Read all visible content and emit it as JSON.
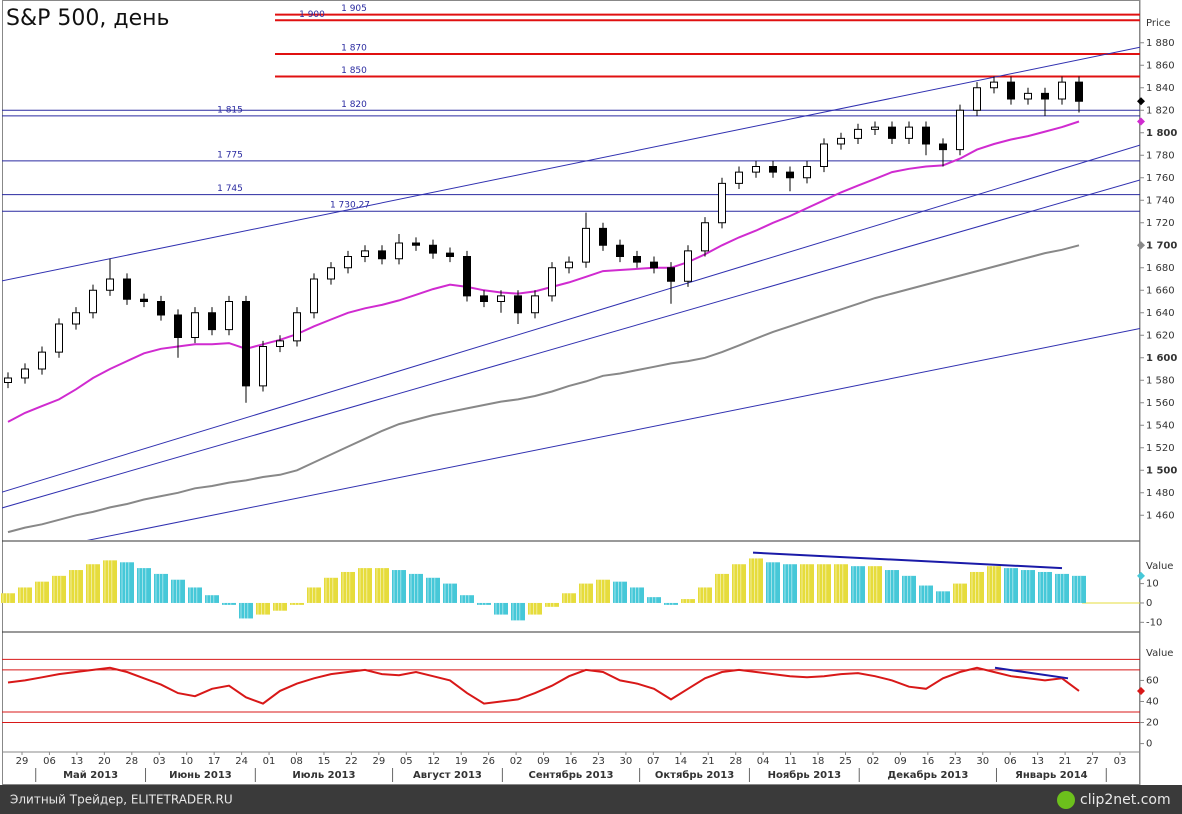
{
  "chart_data": [
    {
      "type": "candlestick",
      "title": "S&P 500, день",
      "y_label": "Price",
      "open": [
        1578,
        1582,
        1590,
        1605,
        1630,
        1640,
        1660,
        1670,
        1652,
        1650,
        1638,
        1618,
        1640,
        1625,
        1650,
        1575,
        1610,
        1615,
        1640,
        1670,
        1680,
        1690,
        1695,
        1688,
        1702,
        1700,
        1693,
        1690,
        1655,
        1650,
        1655,
        1640,
        1655,
        1680,
        1685,
        1715,
        1700,
        1690,
        1685,
        1680,
        1668,
        1695,
        1720,
        1755,
        1765,
        1770,
        1765,
        1760,
        1770,
        1790,
        1795,
        1803,
        1805,
        1795,
        1805,
        1790,
        1785,
        1820,
        1840,
        1845,
        1830,
        1835,
        1830,
        1845
      ],
      "high": [
        1587,
        1595,
        1610,
        1635,
        1645,
        1665,
        1688,
        1675,
        1657,
        1655,
        1643,
        1645,
        1645,
        1655,
        1655,
        1615,
        1620,
        1645,
        1675,
        1685,
        1695,
        1700,
        1700,
        1710,
        1707,
        1705,
        1698,
        1695,
        1660,
        1660,
        1660,
        1660,
        1685,
        1690,
        1729,
        1720,
        1705,
        1695,
        1690,
        1685,
        1700,
        1725,
        1760,
        1770,
        1775,
        1775,
        1770,
        1775,
        1795,
        1800,
        1808,
        1810,
        1810,
        1810,
        1810,
        1795,
        1825,
        1845,
        1850,
        1850,
        1840,
        1840,
        1850,
        1850
      ],
      "low": [
        1573,
        1577,
        1585,
        1600,
        1625,
        1635,
        1655,
        1647,
        1645,
        1633,
        1600,
        1613,
        1620,
        1620,
        1560,
        1570,
        1605,
        1610,
        1635,
        1665,
        1675,
        1685,
        1683,
        1683,
        1695,
        1688,
        1685,
        1650,
        1645,
        1640,
        1630,
        1635,
        1650,
        1675,
        1680,
        1695,
        1685,
        1680,
        1675,
        1648,
        1663,
        1690,
        1715,
        1750,
        1760,
        1760,
        1748,
        1755,
        1765,
        1785,
        1790,
        1798,
        1790,
        1790,
        1780,
        1770,
        1780,
        1815,
        1835,
        1825,
        1825,
        1815,
        1825,
        1818
      ],
      "close": [
        1582,
        1590,
        1605,
        1630,
        1640,
        1660,
        1670,
        1652,
        1650,
        1638,
        1618,
        1640,
        1625,
        1650,
        1575,
        1610,
        1615,
        1640,
        1670,
        1680,
        1690,
        1695,
        1688,
        1702,
        1700,
        1693,
        1690,
        1655,
        1650,
        1655,
        1640,
        1655,
        1680,
        1685,
        1715,
        1700,
        1690,
        1685,
        1680,
        1668,
        1695,
        1720,
        1755,
        1765,
        1770,
        1765,
        1760,
        1770,
        1790,
        1795,
        1803,
        1805,
        1795,
        1805,
        1790,
        1785,
        1820,
        1840,
        1845,
        1830,
        1835,
        1830,
        1845,
        1828
      ],
      "series": [
        {
          "color": "#d02bd0",
          "values": [
            1543,
            1551,
            1557,
            1563,
            1572,
            1582,
            1590,
            1597,
            1604,
            1608,
            1610,
            1612,
            1612,
            1613,
            1608,
            1612,
            1616,
            1621,
            1628,
            1634,
            1640,
            1644,
            1647,
            1651,
            1656,
            1661,
            1665,
            1663,
            1660,
            1658,
            1657,
            1659,
            1663,
            1667,
            1672,
            1677,
            1678,
            1679,
            1680,
            1680,
            1685,
            1692,
            1700,
            1707,
            1713,
            1720,
            1726,
            1733,
            1740,
            1747,
            1753,
            1759,
            1765,
            1768,
            1770,
            1771,
            1777,
            1785,
            1790,
            1794,
            1797,
            1801,
            1805,
            1810
          ]
        },
        {
          "color": "#888888",
          "values": [
            1445,
            1449,
            1452,
            1456,
            1460,
            1463,
            1467,
            1470,
            1474,
            1477,
            1480,
            1484,
            1486,
            1489,
            1491,
            1494,
            1496,
            1500,
            1507,
            1514,
            1521,
            1528,
            1535,
            1541,
            1545,
            1549,
            1552,
            1555,
            1558,
            1561,
            1563,
            1566,
            1570,
            1575,
            1579,
            1584,
            1586,
            1589,
            1592,
            1595,
            1597,
            1600,
            1605,
            1611,
            1617,
            1623,
            1628,
            1633,
            1638,
            1643,
            1648,
            1653,
            1657,
            1661,
            1665,
            1669,
            1673,
            1677,
            1681,
            1685,
            1689,
            1693,
            1696,
            1700
          ]
        }
      ],
      "levels": [
        {
          "value": 1905,
          "label": "1 905",
          "color": "#e01010"
        },
        {
          "value": 1900,
          "label": "1 900",
          "color": "#e01010"
        },
        {
          "value": 1870,
          "label": "1 870",
          "color": "#e01010"
        },
        {
          "value": 1850,
          "label": "1 850",
          "color": "#e01010"
        },
        {
          "value": 1820,
          "label": "1 820",
          "color": "#2a2aa0"
        },
        {
          "value": 1815,
          "label": "1 815",
          "color": "#2a2aa0"
        },
        {
          "value": 1775,
          "label": "1 775",
          "color": "#2a2aa0"
        },
        {
          "value": 1745,
          "label": "1 745",
          "color": "#2a2aa0"
        },
        {
          "value": 1730.27,
          "label": "1 730,27",
          "color": "#2a2aa0"
        }
      ],
      "trend_lines": [
        {
          "color": "#3030b0",
          "values": [
            1668,
            1876
          ]
        },
        {
          "color": "#3030b0",
          "values": [
            1480,
            1789
          ]
        },
        {
          "color": "#3030b0",
          "values": [
            1466,
            1758
          ]
        },
        {
          "color": "#3030b0",
          "values": [
            1422,
            1626
          ]
        }
      ],
      "ylim": [
        1438,
        1918
      ],
      "yticks": [
        {
          "value": 1460,
          "label": "1 460"
        },
        {
          "value": 1480,
          "label": "1 480"
        },
        {
          "value": 1500,
          "label": "1 500"
        },
        {
          "value": 1520,
          "label": "1 520"
        },
        {
          "value": 1540,
          "label": "1 540"
        },
        {
          "value": 1560,
          "label": "1 560"
        },
        {
          "value": 1580,
          "label": "1 580"
        },
        {
          "value": 1600,
          "label": "1 600"
        },
        {
          "value": 1620,
          "label": "1 620"
        },
        {
          "value": 1640,
          "label": "1 640"
        },
        {
          "value": 1660,
          "label": "1 660"
        },
        {
          "value": 1680,
          "label": "1 680"
        },
        {
          "value": 1700,
          "label": "1 700"
        },
        {
          "value": 1720,
          "label": "1 720"
        },
        {
          "value": 1740,
          "label": "1 740"
        },
        {
          "value": 1760,
          "label": "1 760"
        },
        {
          "value": 1780,
          "label": "1 780"
        },
        {
          "value": 1800,
          "label": "1 800"
        },
        {
          "value": 1820,
          "label": "1 820"
        },
        {
          "value": 1840,
          "label": "1 840"
        },
        {
          "value": 1860,
          "label": "1 860"
        },
        {
          "value": 1880,
          "label": "1 880"
        }
      ]
    },
    {
      "type": "bar",
      "y_label": "Value",
      "colors": [
        "#e6dc3c",
        "#46c8d8"
      ],
      "zero_color": "#e6dc3c",
      "values": [
        5,
        8,
        11,
        14,
        17,
        20,
        22,
        21,
        18,
        15,
        12,
        8,
        4,
        -1,
        -8,
        -6,
        -4,
        -1,
        8,
        13,
        16,
        18,
        18,
        17,
        15,
        13,
        10,
        4,
        -1,
        -6,
        -9,
        -6,
        -2,
        5,
        10,
        12,
        11,
        8,
        3,
        -1,
        2,
        8,
        15,
        20,
        23,
        21,
        20,
        20,
        20,
        20,
        19,
        19,
        17,
        14,
        9,
        6,
        10,
        16,
        19,
        18,
        17,
        16,
        15,
        14
      ],
      "divergence": {
        "color": "#1a1aa8",
        "values": [
          26,
          18
        ]
      },
      "ylim": [
        -15,
        32
      ],
      "yticks": [
        10,
        0,
        -10
      ]
    },
    {
      "type": "line",
      "y_label": "Value",
      "color": "#d81818",
      "values": [
        58,
        60,
        63,
        66,
        68,
        70,
        72,
        68,
        62,
        56,
        48,
        45,
        52,
        55,
        44,
        38,
        50,
        57,
        62,
        66,
        68,
        70,
        66,
        65,
        68,
        64,
        60,
        48,
        38,
        40,
        42,
        48,
        55,
        64,
        70,
        68,
        60,
        57,
        52,
        42,
        52,
        62,
        68,
        70,
        68,
        66,
        64,
        63,
        64,
        66,
        67,
        64,
        60,
        54,
        52,
        62,
        68,
        72,
        68,
        64,
        62,
        60,
        62,
        50
      ],
      "levels": [
        20,
        30,
        70,
        80
      ],
      "divergence": {
        "color": "#1a1aa8",
        "values": [
          72,
          62
        ]
      },
      "ylim": [
        -8,
        106
      ],
      "yticks": [
        0,
        20,
        40,
        60
      ]
    }
  ],
  "time_axis": {
    "days": [
      "29",
      "06",
      "13",
      "20",
      "28",
      "03",
      "10",
      "17",
      "24",
      "01",
      "08",
      "15",
      "22",
      "29",
      "05",
      "12",
      "19",
      "26",
      "02",
      "09",
      "16",
      "23",
      "30",
      "07",
      "14",
      "21",
      "28",
      "04",
      "11",
      "18",
      "25",
      "02",
      "09",
      "16",
      "23",
      "30",
      "06",
      "13",
      "21",
      "27",
      "03"
    ],
    "months": [
      "Май 2013",
      "Июнь 2013",
      "Июль 2013",
      "Август 2013",
      "Сентябрь 2013",
      "Октябрь 2013",
      "Ноябрь 2013",
      "Декабрь 2013",
      "Январь 2014"
    ]
  },
  "footer": {
    "source": "Элитный Трейдер, ELITETRADER.RU",
    "brand": "clip2net.com"
  }
}
